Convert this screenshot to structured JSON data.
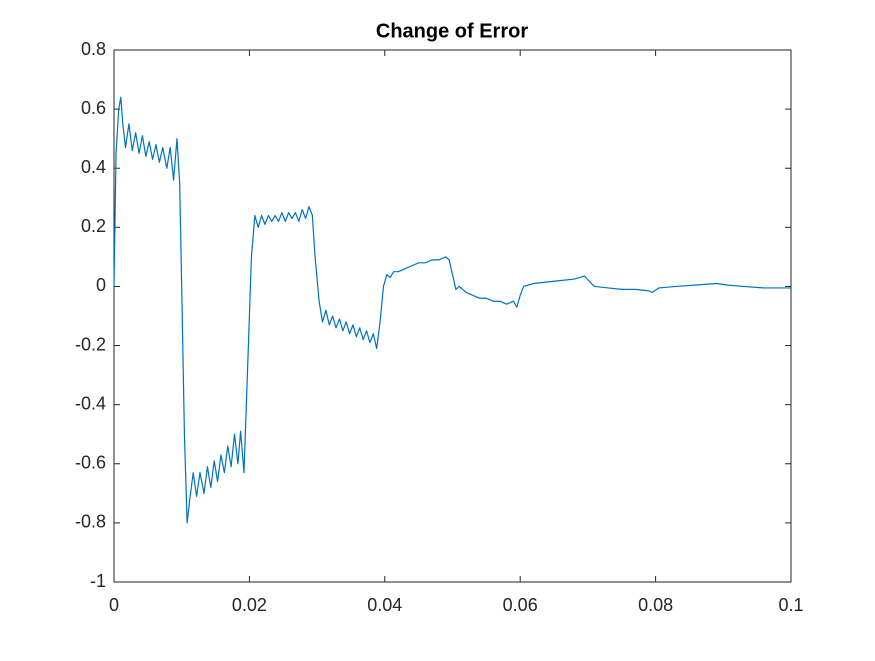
{
  "chart_data": {
    "type": "line",
    "title": "Change of Error",
    "color": "#0072bd",
    "x": [
      0,
      0.0003,
      0.0007,
      0.001,
      0.0013,
      0.0017,
      0.0022,
      0.0027,
      0.0032,
      0.0037,
      0.0042,
      0.0047,
      0.0052,
      0.0057,
      0.0062,
      0.0067,
      0.0072,
      0.0078,
      0.0083,
      0.0088,
      0.0093,
      0.0097,
      0.01,
      0.0104,
      0.0108,
      0.0112,
      0.0117,
      0.0122,
      0.0127,
      0.0133,
      0.0138,
      0.0143,
      0.0148,
      0.0153,
      0.0158,
      0.0163,
      0.0168,
      0.0173,
      0.0178,
      0.0183,
      0.0187,
      0.0192,
      0.0197,
      0.0203,
      0.0208,
      0.0213,
      0.0218,
      0.0223,
      0.0228,
      0.0233,
      0.0238,
      0.0243,
      0.0248,
      0.0253,
      0.0258,
      0.0263,
      0.0268,
      0.0273,
      0.0278,
      0.0283,
      0.0288,
      0.0293,
      0.0297,
      0.0303,
      0.0308,
      0.0313,
      0.0318,
      0.0323,
      0.0328,
      0.0333,
      0.0338,
      0.0343,
      0.0348,
      0.0353,
      0.0358,
      0.0363,
      0.0368,
      0.0373,
      0.0378,
      0.0383,
      0.0388,
      0.0393,
      0.0398,
      0.0403,
      0.0408,
      0.0413,
      0.042,
      0.043,
      0.044,
      0.045,
      0.046,
      0.047,
      0.048,
      0.049,
      0.0495,
      0.05,
      0.0505,
      0.051,
      0.052,
      0.053,
      0.054,
      0.055,
      0.056,
      0.057,
      0.058,
      0.059,
      0.0595,
      0.06,
      0.0605,
      0.062,
      0.064,
      0.066,
      0.068,
      0.0695,
      0.0705,
      0.071,
      0.073,
      0.075,
      0.077,
      0.079,
      0.0795,
      0.0805,
      0.083,
      0.086,
      0.089,
      0.0905,
      0.093,
      0.096,
      0.1
    ],
    "values": [
      0,
      0.45,
      0.6,
      0.64,
      0.55,
      0.47,
      0.55,
      0.46,
      0.52,
      0.45,
      0.51,
      0.44,
      0.49,
      0.43,
      0.48,
      0.42,
      0.47,
      0.4,
      0.47,
      0.36,
      0.5,
      0.35,
      0,
      -0.5,
      -0.8,
      -0.72,
      -0.63,
      -0.71,
      -0.63,
      -0.7,
      -0.61,
      -0.68,
      -0.59,
      -0.66,
      -0.57,
      -0.63,
      -0.54,
      -0.61,
      -0.5,
      -0.6,
      -0.49,
      -0.63,
      -0.3,
      0.1,
      0.24,
      0.2,
      0.24,
      0.21,
      0.24,
      0.22,
      0.24,
      0.22,
      0.25,
      0.22,
      0.25,
      0.23,
      0.25,
      0.22,
      0.26,
      0.23,
      0.27,
      0.24,
      0.1,
      -0.05,
      -0.12,
      -0.08,
      -0.13,
      -0.1,
      -0.14,
      -0.11,
      -0.15,
      -0.12,
      -0.16,
      -0.13,
      -0.17,
      -0.14,
      -0.18,
      -0.15,
      -0.19,
      -0.16,
      -0.21,
      -0.12,
      0,
      0.04,
      0.03,
      0.05,
      0.05,
      0.06,
      0.07,
      0.08,
      0.08,
      0.09,
      0.09,
      0.1,
      0.09,
      0.04,
      -0.01,
      0,
      -0.02,
      -0.03,
      -0.04,
      -0.04,
      -0.05,
      -0.05,
      -0.06,
      -0.05,
      -0.07,
      -0.03,
      0,
      0.01,
      0.015,
      0.02,
      0.025,
      0.035,
      0.01,
      0,
      -0.005,
      -0.01,
      -0.01,
      -0.015,
      -0.02,
      -0.005,
      0,
      0.005,
      0.01,
      0.005,
      0,
      -0.005,
      -0.005
    ],
    "xlim": [
      0,
      0.1
    ],
    "ylim": [
      -1,
      0.8
    ],
    "xticks": [
      0,
      0.02,
      0.04,
      0.06,
      0.08,
      0.1
    ],
    "yticks": [
      -1,
      -0.8,
      -0.6,
      -0.4,
      -0.2,
      0,
      0.2,
      0.4,
      0.6,
      0.8
    ],
    "grid": false
  }
}
